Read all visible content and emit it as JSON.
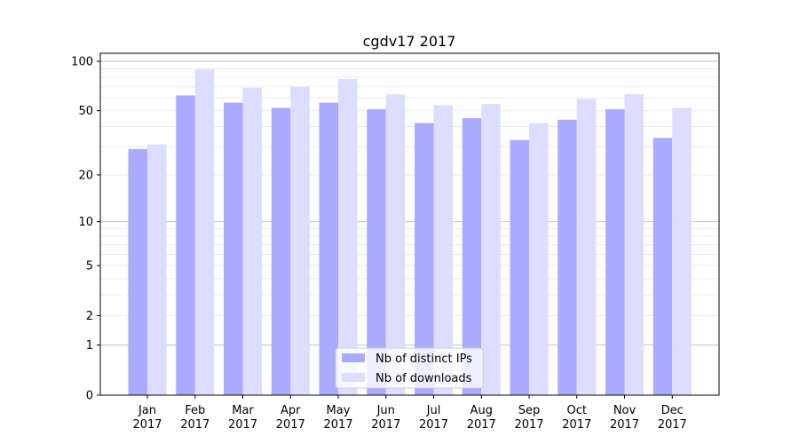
{
  "chart_data": {
    "type": "bar",
    "title": "cgdv17 2017",
    "xlabel": "",
    "ylabel": "",
    "yscale": "symlog",
    "ylim": [
      0,
      110
    ],
    "yticks": [
      0,
      1,
      2,
      5,
      10,
      20,
      50,
      100
    ],
    "ytick_labels": [
      "0",
      "1",
      "2",
      "5",
      "10",
      "20",
      "50",
      "100"
    ],
    "categories": [
      "Jan\n2017",
      "Feb\n2017",
      "Mar\n2017",
      "Apr\n2017",
      "May\n2017",
      "Jun\n2017",
      "Jul\n2017",
      "Aug\n2017",
      "Sep\n2017",
      "Oct\n2017",
      "Nov\n2017",
      "Dec\n2017"
    ],
    "category_months": [
      "Jan",
      "Feb",
      "Mar",
      "Apr",
      "May",
      "Jun",
      "Jul",
      "Aug",
      "Sep",
      "Oct",
      "Nov",
      "Dec"
    ],
    "category_year": "2017",
    "series": [
      {
        "name": "Nb of distinct IPs",
        "color": "#aaaaff",
        "values": [
          29,
          62,
          56,
          52,
          56,
          51,
          42,
          45,
          33,
          44,
          51,
          34
        ]
      },
      {
        "name": "Nb of downloads",
        "color": "#ddddff",
        "values": [
          31,
          89,
          69,
          70,
          78,
          63,
          54,
          55,
          42,
          59,
          63,
          52
        ]
      }
    ],
    "grid": true,
    "legend": "bottom-center"
  }
}
